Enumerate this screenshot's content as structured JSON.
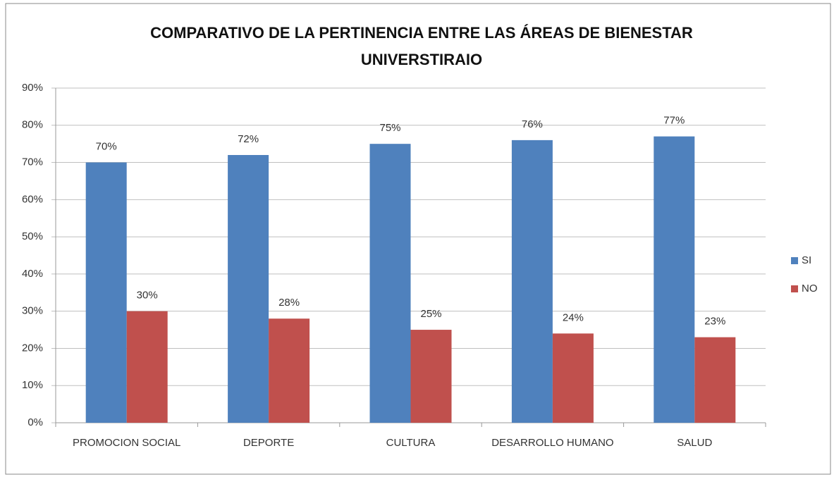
{
  "chart_data": {
    "type": "bar",
    "title": "COMPARATIVO DE LA PERTINENCIA ENTRE LAS ÁREAS DE BIENESTAR UNIVERSTIRAIO",
    "categories": [
      "PROMOCION SOCIAL",
      "DEPORTE",
      "CULTURA",
      "DESARROLLO HUMANO",
      "SALUD"
    ],
    "series": [
      {
        "name": "SI",
        "color": "#4f81bd",
        "values": [
          70,
          72,
          75,
          76,
          77
        ],
        "value_labels": [
          "70%",
          "72%",
          "75%",
          "76%",
          "77%"
        ]
      },
      {
        "name": "NO",
        "color": "#c0504d",
        "values": [
          30,
          28,
          25,
          24,
          23
        ],
        "value_labels": [
          "30%",
          "28%",
          "25%",
          "24%",
          "23%"
        ]
      }
    ],
    "ylim": [
      0,
      90
    ],
    "yticks": [
      {
        "value": 0,
        "label": "0%"
      },
      {
        "value": 10,
        "label": "10%"
      },
      {
        "value": 20,
        "label": "20%"
      },
      {
        "value": 30,
        "label": "30%"
      },
      {
        "value": 40,
        "label": "40%"
      },
      {
        "value": 50,
        "label": "50%"
      },
      {
        "value": 60,
        "label": "60%"
      },
      {
        "value": 70,
        "label": "70%"
      },
      {
        "value": 80,
        "label": "80%"
      },
      {
        "value": 90,
        "label": "90%"
      }
    ],
    "grid": true,
    "legend": "right"
  }
}
